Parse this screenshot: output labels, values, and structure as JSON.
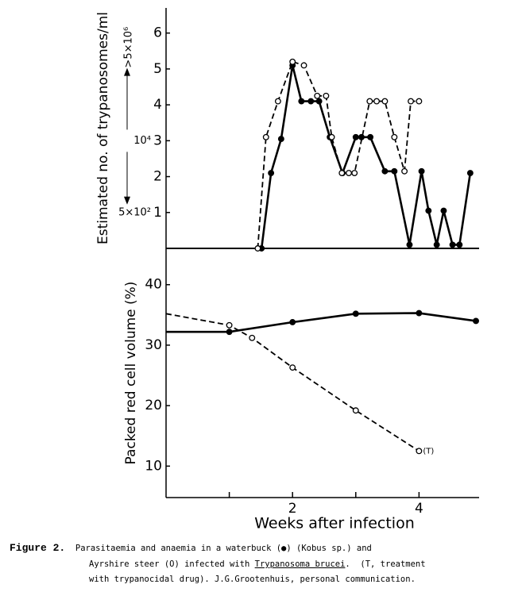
{
  "chart_data": [
    {
      "type": "line",
      "y_label": "Estimated no. of trypanosomes/ml",
      "xlim": [
        0,
        4.95
      ],
      "ylim": [
        0,
        6.7
      ],
      "yticks": [
        1,
        2,
        3,
        4,
        5,
        6
      ],
      "alt_labels": [
        {
          "value": 6,
          "label": ">5×10⁶"
        },
        {
          "value": 3,
          "label": "10⁴"
        },
        {
          "value": 1,
          "label": "5×10²"
        }
      ],
      "series": [
        {
          "color": "#000",
          "marker": "filled",
          "dashed": false,
          "x": [
            1.51,
            1.66,
            1.82,
            2.0,
            2.14,
            2.29,
            2.42,
            2.59,
            2.79,
            3.0,
            3.09,
            3.23,
            3.46,
            3.61,
            3.85,
            4.04,
            4.15,
            4.28,
            4.39,
            4.53,
            4.64,
            4.81
          ],
          "values": [
            0,
            2.1,
            3.05,
            5.1,
            4.1,
            4.1,
            4.1,
            3.1,
            2.1,
            3.1,
            3.1,
            3.1,
            2.15,
            2.15,
            0.1,
            2.15,
            1.05,
            0.1,
            1.05,
            0.1,
            0.1,
            2.1
          ]
        },
        {
          "color": "#000",
          "marker": "open",
          "dashed": true,
          "x": [
            1.45,
            1.58,
            1.77,
            2.0,
            2.18,
            2.39,
            2.53,
            2.62,
            2.78,
            2.89,
            2.98,
            3.22,
            3.33,
            3.46,
            3.61,
            3.77,
            3.87,
            4.0
          ],
          "values": [
            0,
            3.1,
            4.1,
            5.2,
            5.1,
            4.25,
            4.25,
            3.1,
            2.1,
            2.1,
            2.1,
            4.1,
            4.1,
            4.1,
            3.1,
            2.15,
            4.1,
            4.1
          ]
        }
      ]
    },
    {
      "type": "line",
      "y_label": "Packed red cell volume (%)",
      "x_label": "Weeks after infection",
      "xlim": [
        0,
        4.95
      ],
      "ylim": [
        4.8,
        46
      ],
      "xticks": [
        2,
        4
      ],
      "xminorticks": [
        1,
        3
      ],
      "yticks": [
        10,
        20,
        30,
        40
      ],
      "annotation": "(T)",
      "series": [
        {
          "color": "#000",
          "marker": "filled",
          "dashed": false,
          "x": [
            0,
            1.0,
            2.0,
            3.0,
            4.0,
            4.9
          ],
          "values": [
            32.2,
            32.2,
            33.8,
            35.2,
            35.3,
            34.0
          ]
        },
        {
          "color": "#000",
          "marker": "open",
          "dashed": true,
          "x": [
            0,
            1.0,
            1.36,
            2.0,
            3.0,
            4.0
          ],
          "values": [
            35.2,
            33.3,
            31.2,
            26.3,
            19.2,
            12.5
          ]
        }
      ]
    }
  ],
  "caption": {
    "label": "Figure 2.",
    "line1": "Parasitaemia and anaemia in a waterbuck (●) (Kobus sp.) and",
    "line2a": "Ayrshire steer (O) infected with ",
    "line2_species": "Trypanosoma brucei",
    "line2b": ".  (T, treatment",
    "line3": "with trypanocidal drug). J.G.Grootenhuis, personal communication."
  }
}
